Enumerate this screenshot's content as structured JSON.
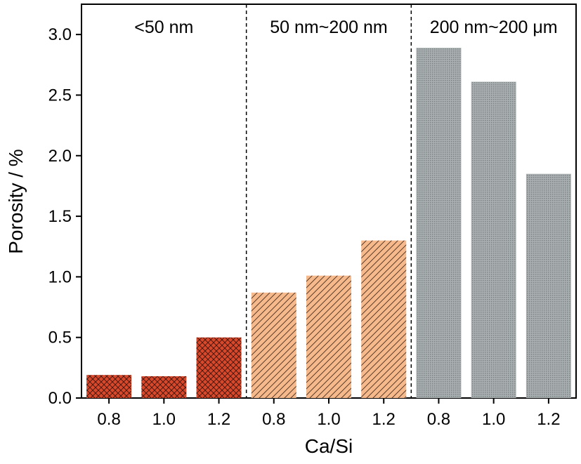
{
  "chart_data": {
    "type": "bar",
    "title": "",
    "xlabel": "Ca/Si",
    "ylabel": "Porosity / %",
    "ylim": [
      0,
      3.25
    ],
    "yticks": [
      0.0,
      0.5,
      1.0,
      1.5,
      2.0,
      2.5,
      3.0
    ],
    "ytick_labels": [
      "0.0",
      "0.5",
      "1.0",
      "1.5",
      "2.0",
      "2.5",
      "3.0"
    ],
    "grid": false,
    "legend": "none",
    "groups": [
      {
        "label": "<50 nm",
        "categories": [
          "0.8",
          "1.0",
          "1.2"
        ],
        "values": [
          0.19,
          0.18,
          0.5
        ],
        "color": "#d9482b",
        "hatch": "cross-hatch"
      },
      {
        "label": "50 nm~200 nm",
        "categories": [
          "0.8",
          "1.0",
          "1.2"
        ],
        "values": [
          0.87,
          1.01,
          1.3
        ],
        "color": "#f6b98c",
        "hatch": "diagonal"
      },
      {
        "label": "200 nm~200 μm",
        "categories": [
          "0.8",
          "1.0",
          "1.2"
        ],
        "values": [
          2.89,
          2.61,
          1.85
        ],
        "color": "#9aa0a1",
        "hatch": "fine-dots"
      }
    ],
    "group_separators": "dashed-vertical"
  }
}
